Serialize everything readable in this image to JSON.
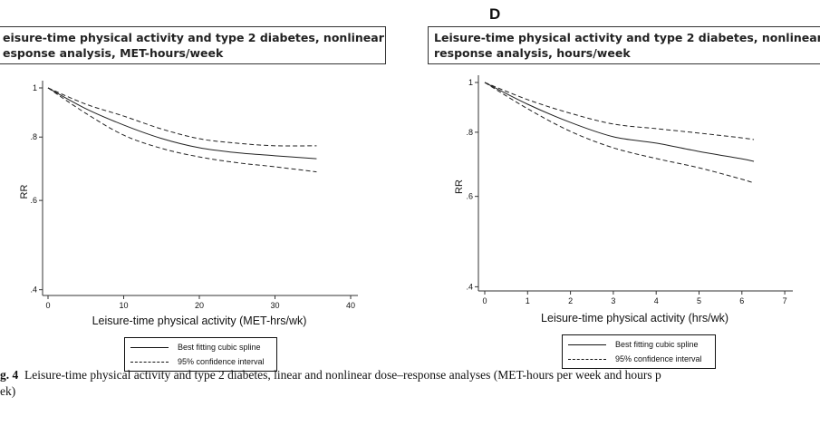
{
  "panels": [
    {
      "letter": "",
      "title_lines": [
        "eisure-time physical activity and type 2 diabetes, nonlinear dose-",
        "esponse analysis, MET-hours/week"
      ]
    },
    {
      "letter": "D",
      "title_lines": [
        "Leisure-time physical activity and type 2 diabetes, nonlinear dose-",
        "response analysis, hours/week"
      ]
    }
  ],
  "caption": {
    "label": "g. 4",
    "line1": "Leisure-time physical activity and type 2 diabetes, linear and nonlinear dose–response analyses (MET-hours per week and hours p",
    "line2": "ek)"
  },
  "chart_data": [
    {
      "type": "line",
      "xlabel": "Leisure-time physical activity (MET-hrs/wk)",
      "ylabel": "RR",
      "y_scale": "log",
      "xlim": [
        0,
        40
      ],
      "ylim": [
        0.4,
        1
      ],
      "xticks": [
        "0",
        "10",
        "20",
        "30",
        "40"
      ],
      "yticks": [
        {
          "value": 1,
          "label": "1"
        },
        {
          "value": 0.8,
          "label": ".8"
        },
        {
          "value": 0.6,
          "label": ".6"
        },
        {
          "value": 0.4,
          "label": ".4"
        }
      ],
      "grid": false,
      "legend_position": "bottom",
      "x": [
        0,
        5,
        10,
        15,
        20,
        25,
        30,
        35.5
      ],
      "series": [
        {
          "name": "Best fitting cubic spline",
          "style": "solid",
          "values": [
            1,
            0.91,
            0.845,
            0.795,
            0.762,
            0.745,
            0.735,
            0.725
          ]
        },
        {
          "name": "95% confidence interval",
          "style": "dashed",
          "values": [
            1,
            0.929,
            0.88,
            0.83,
            0.794,
            0.778,
            0.769,
            0.769
          ]
        },
        {
          "name": "95% confidence interval",
          "style": "dashed",
          "legend": false,
          "values": [
            1,
            0.891,
            0.807,
            0.76,
            0.731,
            0.712,
            0.699,
            0.683
          ]
        }
      ]
    },
    {
      "type": "line",
      "xlabel": "Leisure-time physical activity (hrs/wk)",
      "ylabel": "RR",
      "y_scale": "log",
      "xlim": [
        0,
        7
      ],
      "ylim": [
        0.4,
        1
      ],
      "xticks": [
        "0",
        "1",
        "2",
        "3",
        "4",
        "5",
        "6",
        "7"
      ],
      "yticks": [
        {
          "value": 1,
          "label": "1"
        },
        {
          "value": 0.8,
          "label": ".8"
        },
        {
          "value": 0.6,
          "label": ".6"
        },
        {
          "value": 0.4,
          "label": ".4"
        }
      ],
      "grid": false,
      "legend_position": "bottom",
      "x": [
        0,
        1,
        2,
        3,
        4,
        5,
        6,
        6.28
      ],
      "series": [
        {
          "name": "Best fitting cubic spline",
          "style": "solid",
          "values": [
            1,
            0.907,
            0.836,
            0.784,
            0.762,
            0.734,
            0.71,
            0.702
          ]
        },
        {
          "name": "95% confidence interval",
          "style": "dashed",
          "values": [
            1,
            0.926,
            0.871,
            0.83,
            0.813,
            0.797,
            0.78,
            0.774
          ]
        },
        {
          "name": "95% confidence interval",
          "style": "dashed",
          "legend": false,
          "values": [
            1,
            0.889,
            0.803,
            0.746,
            0.711,
            0.682,
            0.648,
            0.637
          ]
        }
      ]
    }
  ]
}
